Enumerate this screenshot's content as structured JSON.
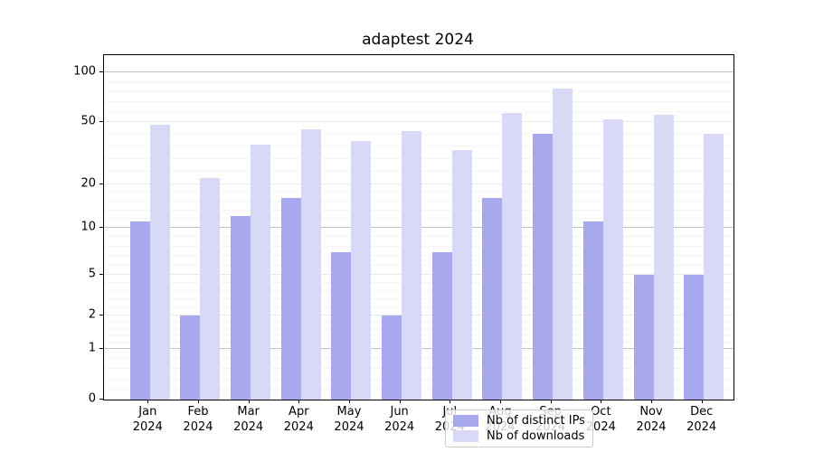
{
  "title": "adaptest 2024",
  "chart_data": {
    "type": "bar",
    "title": "adaptest 2024",
    "xlabel": "",
    "ylabel": "",
    "categories": [
      "Jan 2024",
      "Feb 2024",
      "Mar 2024",
      "Apr 2024",
      "May 2024",
      "Jun 2024",
      "Jul 2024",
      "Aug 2024",
      "Sep 2024",
      "Oct 2024",
      "Nov 2024",
      "Dec 2024"
    ],
    "series": [
      {
        "name": "Nb of distinct IPs",
        "color": "#a8a8ef",
        "values": [
          11,
          2,
          12,
          16,
          7,
          2,
          7,
          16,
          42,
          11,
          5,
          5
        ]
      },
      {
        "name": "Nb of downloads",
        "color": "#d8d8f7",
        "values": [
          48,
          22,
          36,
          45,
          38,
          44,
          33,
          57,
          80,
          52,
          55,
          42
        ]
      }
    ],
    "yticks": [
      0,
      1,
      2,
      5,
      10,
      20,
      50,
      100
    ],
    "ylim": [
      0,
      127
    ],
    "yscale": "symlog",
    "grid": true,
    "legend_position": "lower center",
    "scale_anchors": [
      [
        0,
        0
      ],
      [
        1,
        0.147
      ],
      [
        2,
        0.244
      ],
      [
        5,
        0.362
      ],
      [
        10,
        0.4987
      ],
      [
        20,
        0.6254
      ],
      [
        50,
        0.8058
      ],
      [
        100,
        0.9501
      ]
    ],
    "decade_ticks": [
      1,
      10,
      100
    ]
  }
}
